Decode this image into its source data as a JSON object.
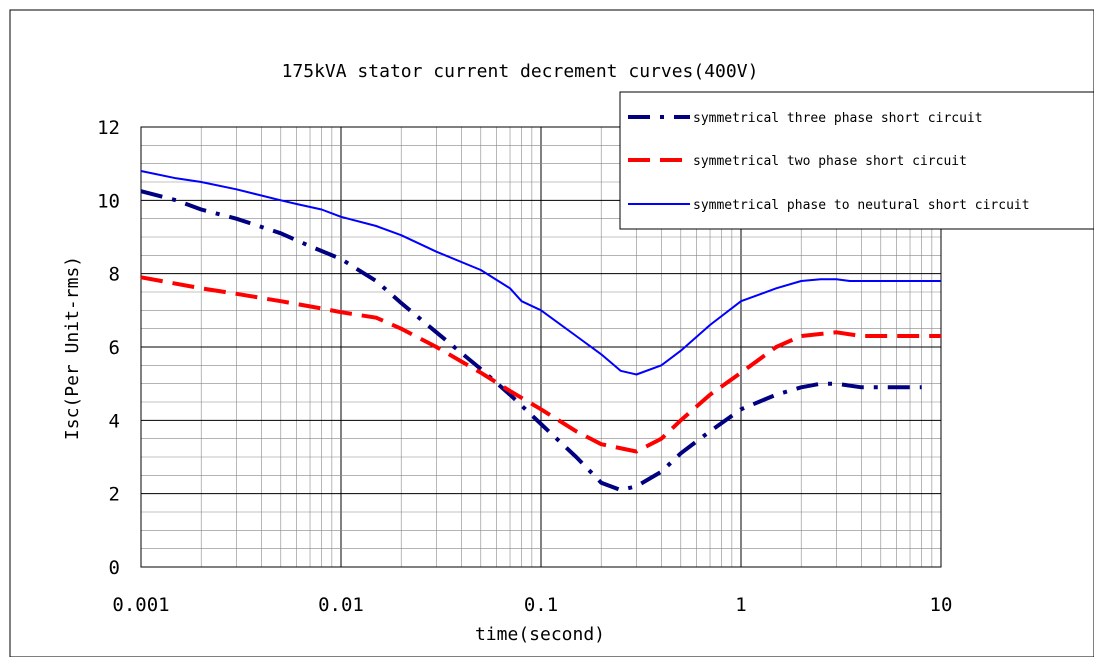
{
  "chart_data": {
    "type": "line",
    "title": "175kVA stator current decrement curves(400V)",
    "xlabel": "time(second)",
    "ylabel": "Isc(Per Unit-rms)",
    "x_scale": "log",
    "xlim": [
      0.001,
      10
    ],
    "ylim": [
      0,
      12
    ],
    "x_ticks": [
      0.001,
      0.01,
      0.1,
      1,
      10
    ],
    "x_tick_labels": [
      "0.001",
      "0.01",
      "0.1",
      "1",
      "10"
    ],
    "y_ticks": [
      0,
      2,
      4,
      6,
      8,
      10,
      12
    ],
    "y_tick_labels": [
      "0",
      "2",
      "4",
      "6",
      "8",
      "10",
      "12"
    ],
    "grid": true,
    "legend_position": "top-right",
    "series": [
      {
        "name": "symmetrical three phase short circuit",
        "color": "#000080",
        "style": "dash-dot",
        "points": [
          [
            0.001,
            10.25
          ],
          [
            0.0015,
            10.0
          ],
          [
            0.002,
            9.75
          ],
          [
            0.003,
            9.5
          ],
          [
            0.005,
            9.1
          ],
          [
            0.007,
            8.75
          ],
          [
            0.01,
            8.4
          ],
          [
            0.015,
            7.8
          ],
          [
            0.02,
            7.2
          ],
          [
            0.03,
            6.4
          ],
          [
            0.05,
            5.4
          ],
          [
            0.07,
            4.7
          ],
          [
            0.1,
            3.9
          ],
          [
            0.15,
            3.0
          ],
          [
            0.2,
            2.3
          ],
          [
            0.25,
            2.1
          ],
          [
            0.3,
            2.2
          ],
          [
            0.4,
            2.6
          ],
          [
            0.5,
            3.1
          ],
          [
            0.7,
            3.7
          ],
          [
            1.0,
            4.3
          ],
          [
            1.5,
            4.7
          ],
          [
            2.0,
            4.9
          ],
          [
            2.5,
            5.0
          ],
          [
            3.0,
            5.0
          ],
          [
            4.0,
            4.9
          ],
          [
            8.0,
            4.9
          ]
        ]
      },
      {
        "name": "symmetrical two phase short circuit",
        "color": "#ff0000",
        "style": "dash",
        "points": [
          [
            0.001,
            7.9
          ],
          [
            0.002,
            7.6
          ],
          [
            0.003,
            7.45
          ],
          [
            0.005,
            7.25
          ],
          [
            0.008,
            7.05
          ],
          [
            0.01,
            6.95
          ],
          [
            0.015,
            6.8
          ],
          [
            0.02,
            6.5
          ],
          [
            0.03,
            6.0
          ],
          [
            0.05,
            5.3
          ],
          [
            0.07,
            4.8
          ],
          [
            0.1,
            4.3
          ],
          [
            0.15,
            3.7
          ],
          [
            0.2,
            3.35
          ],
          [
            0.3,
            3.15
          ],
          [
            0.4,
            3.5
          ],
          [
            0.5,
            4.0
          ],
          [
            0.7,
            4.7
          ],
          [
            1.0,
            5.3
          ],
          [
            1.5,
            6.0
          ],
          [
            2.0,
            6.3
          ],
          [
            3.0,
            6.4
          ],
          [
            4.0,
            6.3
          ],
          [
            10.0,
            6.3
          ]
        ]
      },
      {
        "name": "symmetrical phase to neutural short circuit",
        "color": "#0000ff",
        "style": "solid",
        "points": [
          [
            0.001,
            10.8
          ],
          [
            0.0015,
            10.6
          ],
          [
            0.002,
            10.5
          ],
          [
            0.003,
            10.3
          ],
          [
            0.005,
            10.0
          ],
          [
            0.006,
            9.9
          ],
          [
            0.008,
            9.75
          ],
          [
            0.01,
            9.55
          ],
          [
            0.015,
            9.3
          ],
          [
            0.02,
            9.05
          ],
          [
            0.03,
            8.6
          ],
          [
            0.05,
            8.1
          ],
          [
            0.07,
            7.6
          ],
          [
            0.08,
            7.25
          ],
          [
            0.1,
            7.0
          ],
          [
            0.15,
            6.3
          ],
          [
            0.2,
            5.8
          ],
          [
            0.25,
            5.35
          ],
          [
            0.3,
            5.25
          ],
          [
            0.4,
            5.5
          ],
          [
            0.5,
            5.9
          ],
          [
            0.7,
            6.6
          ],
          [
            1.0,
            7.25
          ],
          [
            1.5,
            7.6
          ],
          [
            2.0,
            7.8
          ],
          [
            2.5,
            7.85
          ],
          [
            3.0,
            7.85
          ],
          [
            3.5,
            7.8
          ],
          [
            10.0,
            7.8
          ]
        ]
      }
    ]
  }
}
